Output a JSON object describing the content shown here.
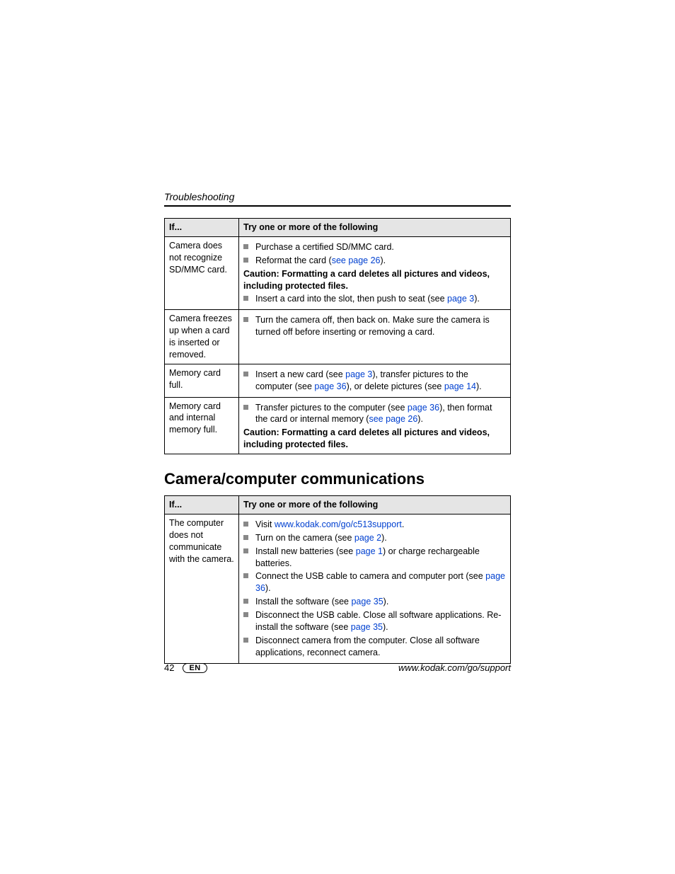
{
  "header": {
    "section": "Troubleshooting"
  },
  "table1": {
    "head_if": "If...",
    "head_try": "Try one or more of the following",
    "rows": [
      {
        "if": "Camera does not recognize SD/MMC card.",
        "items": [
          {
            "type": "bullet",
            "parts": [
              {
                "t": "text",
                "v": "Purchase a certified SD/MMC card."
              }
            ]
          },
          {
            "type": "bullet",
            "parts": [
              {
                "t": "text",
                "v": "Reformat the card ("
              },
              {
                "t": "link",
                "v": "see page 26"
              },
              {
                "t": "text",
                "v": ")."
              }
            ]
          },
          {
            "type": "caution",
            "text": "Caution: Formatting a card deletes all pictures and videos, including protected files."
          },
          {
            "type": "bullet",
            "parts": [
              {
                "t": "text",
                "v": "Insert a card into the slot, then push to seat (see "
              },
              {
                "t": "link",
                "v": "page 3"
              },
              {
                "t": "text",
                "v": ")."
              }
            ]
          }
        ]
      },
      {
        "if": "Camera freezes up when a card is inserted or removed.",
        "items": [
          {
            "type": "bullet",
            "parts": [
              {
                "t": "text",
                "v": "Turn the camera off, then back on. Make sure the camera is turned off before inserting or removing a card."
              }
            ]
          }
        ]
      },
      {
        "if": "Memory card full.",
        "items": [
          {
            "type": "bullet",
            "parts": [
              {
                "t": "text",
                "v": "Insert a new card (see "
              },
              {
                "t": "link",
                "v": "page 3"
              },
              {
                "t": "text",
                "v": "), transfer pictures to the computer (see "
              },
              {
                "t": "link",
                "v": "page 36"
              },
              {
                "t": "text",
                "v": "), or delete pictures (see "
              },
              {
                "t": "link",
                "v": "page 14"
              },
              {
                "t": "text",
                "v": ")."
              }
            ]
          }
        ]
      },
      {
        "if": "Memory card and internal memory full.",
        "items": [
          {
            "type": "bullet",
            "parts": [
              {
                "t": "text",
                "v": "Transfer pictures to the computer (see "
              },
              {
                "t": "link",
                "v": "page 36"
              },
              {
                "t": "text",
                "v": "), then format the card or internal memory ("
              },
              {
                "t": "link",
                "v": "see page 26"
              },
              {
                "t": "text",
                "v": ")."
              }
            ]
          },
          {
            "type": "caution",
            "text": "Caution: Formatting a card deletes all pictures and videos, including protected files."
          }
        ]
      }
    ]
  },
  "heading2": "Camera/computer communications",
  "table2": {
    "head_if": "If...",
    "head_try": "Try one or more of the following",
    "rows": [
      {
        "if": "The computer does not communicate with the camera.",
        "items": [
          {
            "type": "bullet",
            "parts": [
              {
                "t": "text",
                "v": "Visit "
              },
              {
                "t": "link",
                "v": "www.kodak.com/go/c513support"
              },
              {
                "t": "text",
                "v": "."
              }
            ]
          },
          {
            "type": "bullet",
            "parts": [
              {
                "t": "text",
                "v": "Turn on the camera (see "
              },
              {
                "t": "link",
                "v": "page 2"
              },
              {
                "t": "text",
                "v": ")."
              }
            ]
          },
          {
            "type": "bullet",
            "parts": [
              {
                "t": "text",
                "v": "Install new batteries (see "
              },
              {
                "t": "link",
                "v": "page 1"
              },
              {
                "t": "text",
                "v": ") or charge rechargeable batteries."
              }
            ]
          },
          {
            "type": "bullet",
            "parts": [
              {
                "t": "text",
                "v": "Connect the USB cable to camera and computer port (see "
              },
              {
                "t": "link",
                "v": "page 36"
              },
              {
                "t": "text",
                "v": ")."
              }
            ]
          },
          {
            "type": "bullet",
            "parts": [
              {
                "t": "text",
                "v": "Install the software (see "
              },
              {
                "t": "link",
                "v": "page 35"
              },
              {
                "t": "text",
                "v": ")."
              }
            ]
          },
          {
            "type": "bullet",
            "parts": [
              {
                "t": "text",
                "v": "Disconnect the USB cable. Close all software applications. Re-install the software (see "
              },
              {
                "t": "link",
                "v": "page 35"
              },
              {
                "t": "text",
                "v": ")."
              }
            ]
          },
          {
            "type": "bullet",
            "parts": [
              {
                "t": "text",
                "v": "Disconnect camera from the computer. Close all software applications, reconnect camera."
              }
            ]
          }
        ]
      }
    ]
  },
  "footer": {
    "page_number": "42",
    "lang": "EN",
    "url": "www.kodak.com/go/support"
  },
  "colors": {
    "link": "#0040d0",
    "bullet": "#888888",
    "header_bg": "#e5e5e5"
  }
}
